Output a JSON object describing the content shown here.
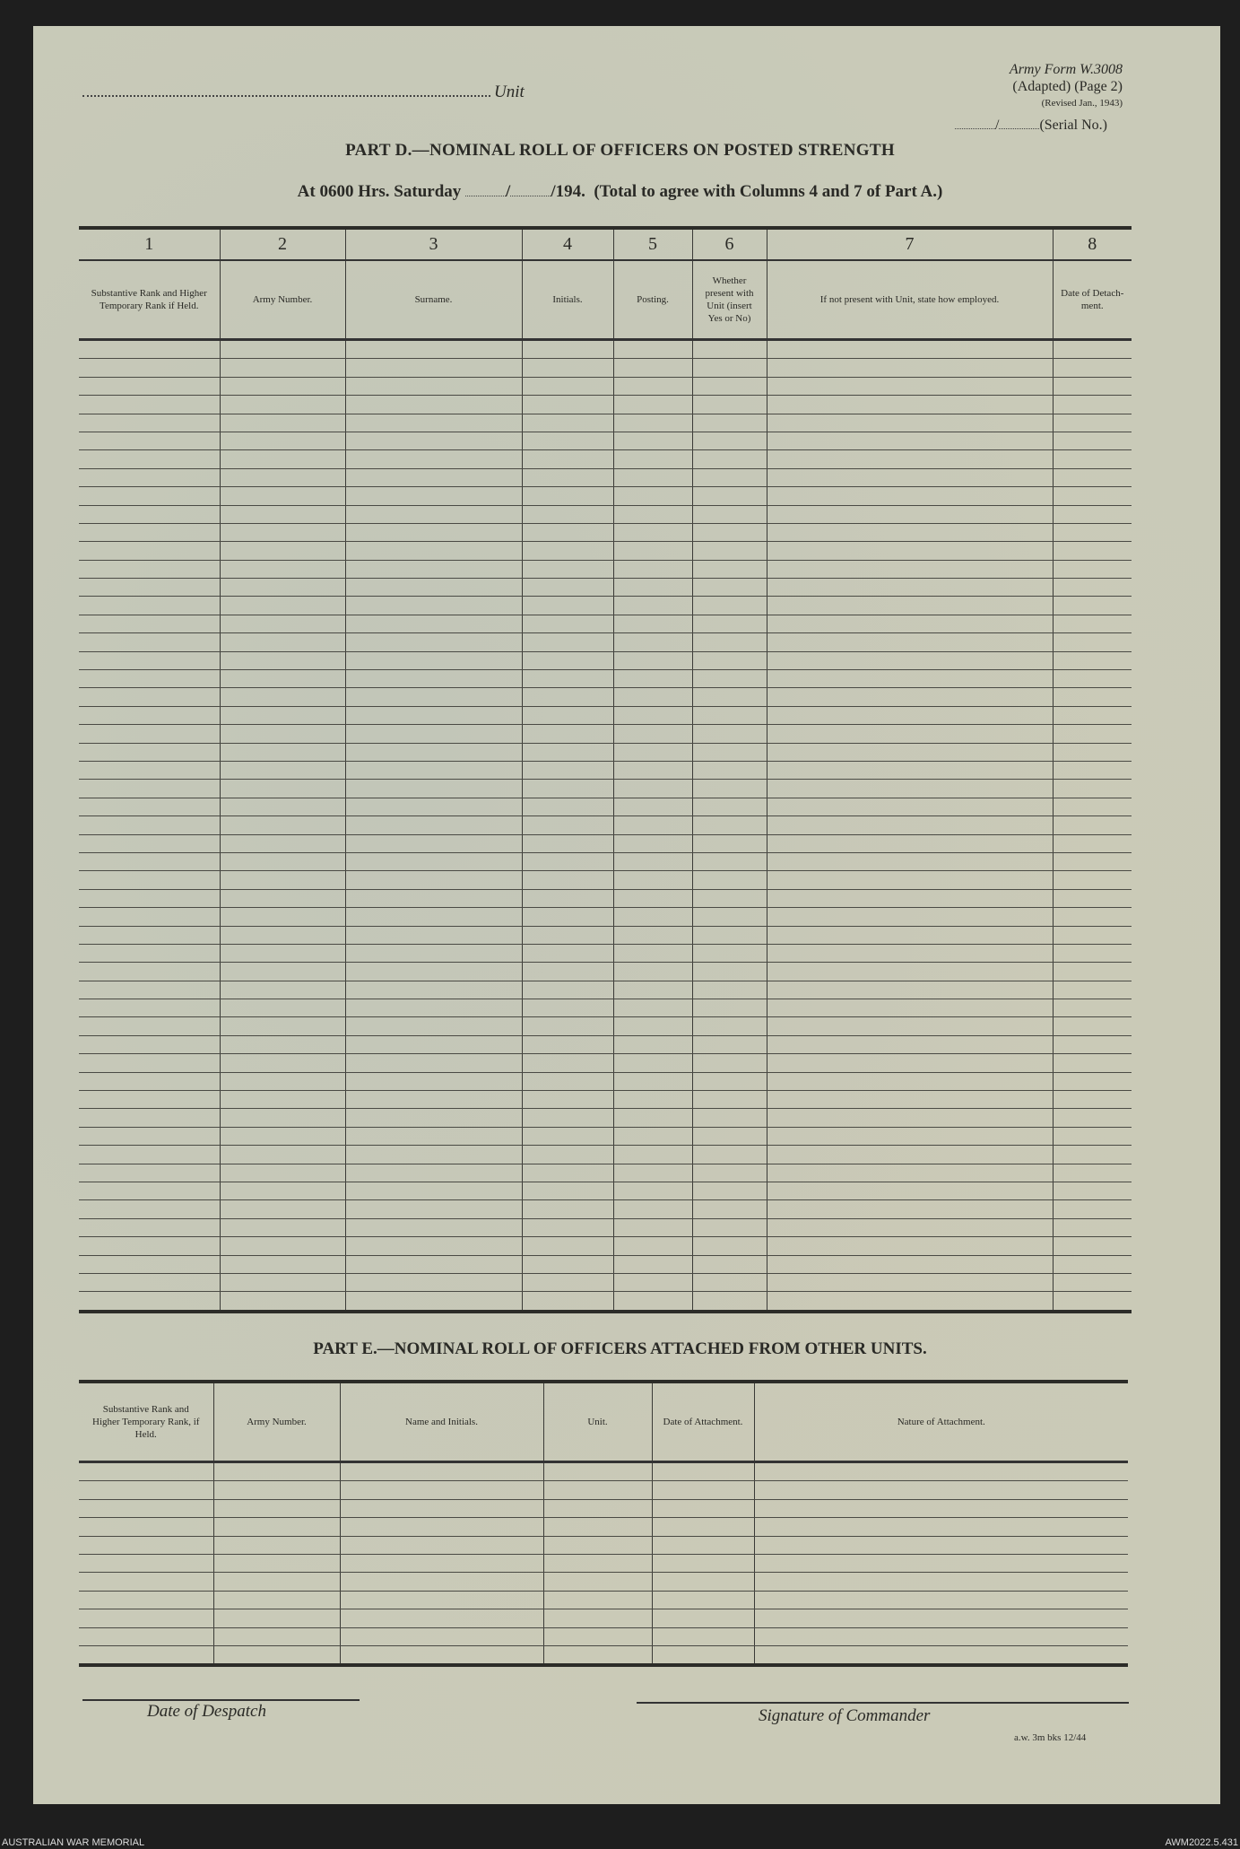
{
  "header": {
    "unit_label": "Unit",
    "form_line1": "Army Form W.3008",
    "form_line2": "(Adapted) (Page 2)",
    "form_line3": "(Revised Jan., 1943)",
    "serial_label": "(Serial No.)"
  },
  "part_d": {
    "title": "PART D.—NOMINAL ROLL OF OFFICERS ON POSTED STRENGTH",
    "at_prefix": "At 0600 Hrs. Saturday",
    "at_year": "/194.",
    "at_note": "(Total to agree with Columns 4 and 7 of Part A.)",
    "columns": [
      {
        "num": "1",
        "label": "Substantive Rank and Higher Temporary Rank if Held."
      },
      {
        "num": "2",
        "label": "Army Number."
      },
      {
        "num": "3",
        "label": "Surname."
      },
      {
        "num": "4",
        "label": "Initials."
      },
      {
        "num": "5",
        "label": "Posting."
      },
      {
        "num": "6",
        "label": "Whether present with Unit (insert Yes or No)"
      },
      {
        "num": "7",
        "label": "If not present with Unit, state how employed."
      },
      {
        "num": "8",
        "label": "Date of Detach-ment."
      }
    ]
  },
  "part_e": {
    "title": "PART E.—NOMINAL ROLL OF OFFICERS ATTACHED FROM OTHER UNITS.",
    "columns": [
      "Substantive Rank and Higher Temporary Rank, if Held.",
      "Army Number.",
      "Name and Initials.",
      "Unit.",
      "Date of Attachment.",
      "Nature of Attachment."
    ]
  },
  "footer": {
    "date_label": "Date of Despatch",
    "signature_label": "Signature of Commander",
    "print_code": "a.w. 3m bks 12/44"
  },
  "caption": {
    "left": "AUSTRALIAN WAR MEMORIAL",
    "right": "AWM2022.5.431"
  }
}
